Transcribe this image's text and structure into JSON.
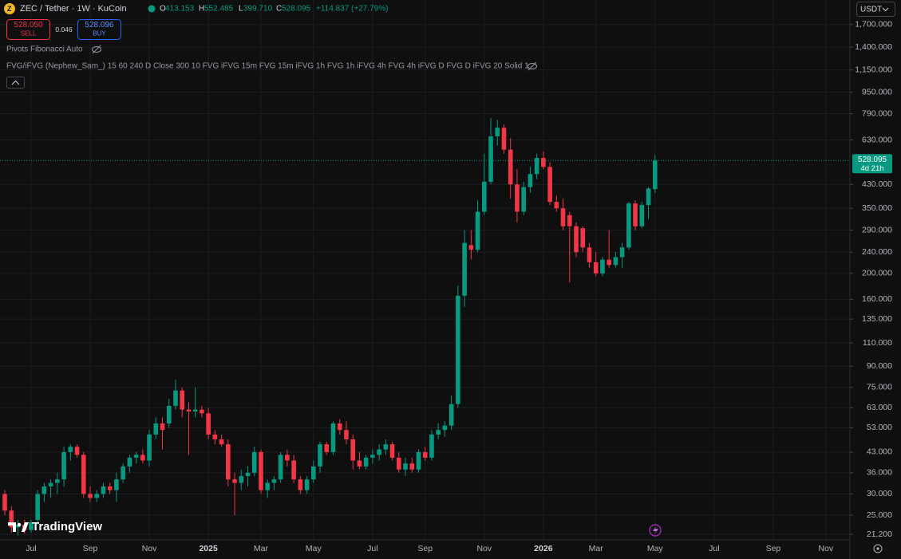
{
  "legend": {
    "symbol": "ZEC / Tether · 1W · KuCoin",
    "o_label": "O",
    "open": "413.153",
    "h_label": "H",
    "high": "552.485",
    "l_label": "L",
    "low": "399.710",
    "c_label": "C",
    "close": "528.095",
    "change": "+114.837 (+27.79%)"
  },
  "trade": {
    "sell_price": "528.050",
    "sell": "SELL",
    "spread": "0.046",
    "buy_price": "528.096",
    "buy": "BUY"
  },
  "indicators": [
    "Pivots Fibonacci Auto",
    "FVG/iFVG (Nephew_Sam_) 15 60 240 D Close 300 10 FVG iFVG 15m FVG 15m iFVG 1h FVG 1h iFVG 4h FVG 4h iFVG D FVG D iFVG 20 Solid 1"
  ],
  "currency": "USDT",
  "price_tag": {
    "price": "528.095",
    "countdown": "4d 21h"
  },
  "brand": "TradingView",
  "chart_data": {
    "type": "candlestick",
    "log": true,
    "grid": true,
    "up_color": "#089981",
    "down_color": "#f23645",
    "categories": [
      null,
      null,
      null,
      null,
      "Jul",
      null,
      null,
      null,
      null,
      null,
      null,
      null,
      null,
      "Sep",
      null,
      null,
      null,
      null,
      null,
      null,
      null,
      null,
      "Nov",
      null,
      null,
      null,
      null,
      null,
      null,
      null,
      null,
      "2025",
      null,
      null,
      null,
      null,
      null,
      null,
      null,
      "Mar",
      null,
      null,
      null,
      null,
      null,
      null,
      null,
      "May",
      null,
      null,
      null,
      null,
      null,
      null,
      null,
      null,
      "Jul",
      null,
      null,
      null,
      null,
      null,
      null,
      null,
      "Sep",
      null,
      null,
      null,
      null,
      null,
      null,
      null,
      null,
      "Nov",
      null,
      null,
      null,
      null,
      null,
      null,
      null,
      null,
      "2026",
      null,
      null,
      null,
      null,
      null,
      null,
      null,
      "Mar",
      null,
      null,
      null,
      null,
      null,
      null,
      null,
      null,
      "May",
      null,
      null,
      null,
      null,
      null,
      null,
      null,
      null,
      "Jul",
      null,
      null,
      null,
      null,
      null,
      null,
      null,
      null,
      "Sep",
      null,
      null,
      null,
      null,
      null,
      null,
      null,
      "Nov",
      null,
      null,
      null
    ],
    "open": [
      30,
      26,
      22.5,
      23,
      22,
      24,
      30,
      32,
      33,
      34,
      43,
      45,
      42,
      30,
      29,
      30,
      32,
      31,
      34,
      38,
      41,
      42,
      40,
      50,
      55,
      55,
      64,
      73,
      62,
      61,
      62,
      60,
      50,
      48,
      46,
      34,
      33,
      35,
      36,
      43,
      31,
      33,
      34,
      42,
      40,
      34,
      31,
      34,
      38,
      46,
      43,
      55,
      52,
      48,
      40,
      38,
      41,
      42,
      44,
      46,
      41,
      37,
      39,
      37,
      43,
      41,
      50,
      52,
      54,
      65,
      165,
      255,
      245,
      340,
      440,
      650,
      700,
      580,
      430,
      340,
      420,
      470,
      540,
      500,
      370,
      350,
      330,
      300,
      295,
      250,
      220,
      200,
      225,
      215,
      230,
      250,
      365,
      300,
      360,
      413.153,
      null,
      null,
      null,
      null,
      null,
      null,
      null,
      null,
      null,
      null,
      null,
      null,
      null,
      null,
      null,
      null,
      null,
      null,
      null,
      null,
      null,
      null,
      null,
      null,
      null,
      null,
      null,
      null,
      null
    ],
    "high": [
      31,
      27,
      24,
      24,
      24,
      31,
      33,
      34,
      36,
      45,
      46,
      46,
      43,
      32,
      31,
      33,
      33,
      36,
      39,
      42,
      43,
      44,
      52,
      58,
      58,
      68,
      80,
      75,
      66,
      75,
      64,
      63,
      52,
      50,
      48,
      36,
      37,
      38,
      45,
      44,
      34,
      35,
      43,
      44,
      42,
      35,
      35,
      40,
      47,
      47,
      56,
      57,
      56,
      50,
      43,
      42,
      44,
      46,
      48,
      47,
      43,
      41,
      41,
      44,
      45,
      52,
      55,
      56,
      70,
      180,
      290,
      290,
      375,
      560,
      760,
      750,
      720,
      640,
      490,
      440,
      500,
      560,
      570,
      520,
      390,
      380,
      340,
      310,
      300,
      260,
      240,
      230,
      290,
      240,
      260,
      370,
      375,
      370,
      420,
      552.485,
      null,
      null,
      null,
      null,
      null,
      null,
      null,
      null,
      null,
      null,
      null,
      null,
      null,
      null,
      null,
      null,
      null,
      null,
      null,
      null,
      null,
      null,
      null,
      null,
      null,
      null,
      null,
      null,
      null
    ],
    "low": [
      25,
      21.5,
      21,
      21.3,
      21.5,
      23,
      28,
      29,
      30,
      32,
      40,
      41,
      29,
      28,
      28,
      29,
      30,
      28,
      33,
      36,
      39,
      39,
      38,
      48,
      44,
      53,
      62,
      58,
      42,
      58,
      58,
      48,
      46,
      45,
      32,
      25,
      31,
      32,
      35,
      30,
      29,
      31,
      33,
      38,
      33,
      30,
      30,
      33,
      36,
      42,
      42,
      50,
      46,
      37,
      37,
      37,
      39,
      40,
      42,
      40,
      36,
      35,
      36,
      36,
      40,
      40,
      48,
      49,
      52,
      63,
      150,
      225,
      240,
      330,
      430,
      600,
      560,
      380,
      310,
      330,
      400,
      450,
      490,
      360,
      340,
      290,
      185,
      230,
      240,
      210,
      195,
      195,
      210,
      210,
      210,
      245,
      290,
      295,
      320,
      399.71,
      null,
      null,
      null,
      null,
      null,
      null,
      null,
      null,
      null,
      null,
      null,
      null,
      null,
      null,
      null,
      null,
      null,
      null,
      null,
      null,
      null,
      null,
      null,
      null,
      null,
      null,
      null,
      null,
      null
    ],
    "close": [
      26,
      22.5,
      23,
      22,
      23.5,
      30,
      32,
      33,
      34,
      43,
      45,
      42,
      30,
      29,
      30,
      32,
      31,
      34,
      38,
      41,
      42,
      40,
      50,
      55,
      52,
      64,
      73,
      62,
      61,
      62,
      60,
      50,
      48,
      46,
      34,
      33,
      35,
      36,
      43,
      31,
      33,
      34,
      42,
      40,
      34,
      31,
      34,
      38,
      46,
      43,
      55,
      52,
      48,
      40,
      38,
      41,
      42,
      44,
      46,
      41,
      37,
      39,
      37,
      43,
      41,
      50,
      52,
      54,
      65,
      165,
      260,
      245,
      340,
      440,
      650,
      700,
      580,
      430,
      340,
      420,
      470,
      540,
      500,
      370,
      350,
      300,
      300,
      240,
      250,
      220,
      200,
      225,
      215,
      230,
      250,
      365,
      300,
      360,
      415,
      528.095,
      null,
      null,
      null,
      null,
      null,
      null,
      null,
      null,
      null,
      null,
      null,
      null,
      null,
      null,
      null,
      null,
      null,
      null,
      null,
      null,
      null,
      null,
      null,
      null,
      null,
      null,
      null,
      null,
      null
    ],
    "ylim": [
      19.8,
      2100
    ],
    "yticks": [
      {
        "value": 1700,
        "label": "1,700.000"
      },
      {
        "value": 1400,
        "label": "1,400.000"
      },
      {
        "value": 1150,
        "label": "1,150.000"
      },
      {
        "value": 950,
        "label": "950.000"
      },
      {
        "value": 790,
        "label": "790.000"
      },
      {
        "value": 630,
        "label": "630.000"
      },
      {
        "value": 430,
        "label": "430.000"
      },
      {
        "value": 350,
        "label": "350.000"
      },
      {
        "value": 290,
        "label": "290.000"
      },
      {
        "value": 240,
        "label": "240.000"
      },
      {
        "value": 200,
        "label": "200.000"
      },
      {
        "value": 160,
        "label": "160.000"
      },
      {
        "value": 135,
        "label": "135.000"
      },
      {
        "value": 110,
        "label": "110.000"
      },
      {
        "value": 90,
        "label": "90.000"
      },
      {
        "value": 75,
        "label": "75.000"
      },
      {
        "value": 63,
        "label": "63.000"
      },
      {
        "value": 53,
        "label": "53.000"
      },
      {
        "value": 43,
        "label": "43.000"
      },
      {
        "value": 36,
        "label": "36.000"
      },
      {
        "value": 30,
        "label": "30.000"
      },
      {
        "value": 25,
        "label": "25.000"
      },
      {
        "value": 21.2,
        "label": "21.200"
      }
    ]
  }
}
